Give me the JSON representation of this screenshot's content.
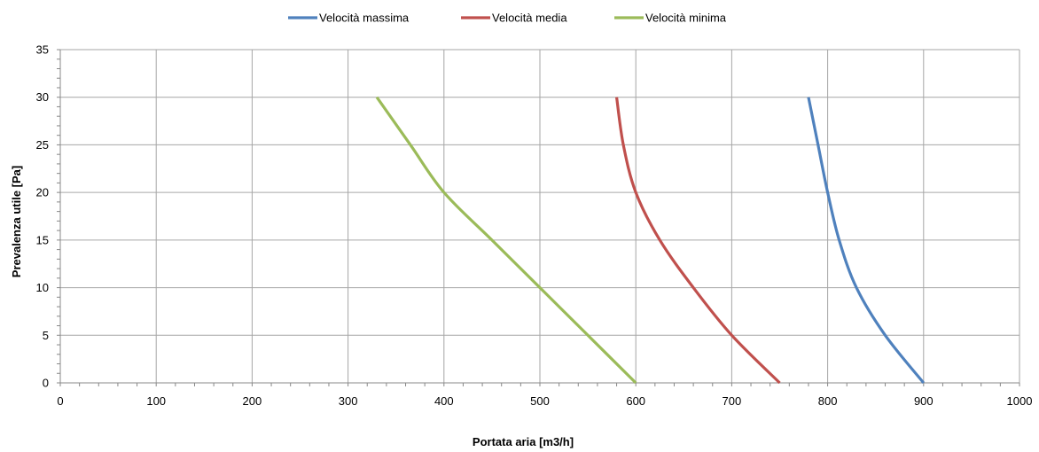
{
  "chart_data": {
    "type": "line",
    "xlabel": "Portata aria  [m3/h]",
    "ylabel": "Prevalenza utile [Pa]",
    "xlim": [
      0,
      1000
    ],
    "ylim": [
      0,
      35
    ],
    "x_ticks": [
      0,
      100,
      200,
      300,
      400,
      500,
      600,
      700,
      800,
      900,
      1000
    ],
    "y_ticks": [
      0,
      5,
      10,
      15,
      20,
      25,
      30,
      35
    ],
    "grid": true,
    "legend_position": "top-center",
    "series": [
      {
        "name": "Velocità massima",
        "color": "#4f81bd",
        "points": [
          [
            780,
            30
          ],
          [
            790,
            25
          ],
          [
            800,
            20
          ],
          [
            812,
            15
          ],
          [
            830,
            10
          ],
          [
            860,
            5
          ],
          [
            900,
            0
          ]
        ]
      },
      {
        "name": "Velocità media",
        "color": "#c0504d",
        "points": [
          [
            580,
            30
          ],
          [
            587,
            25
          ],
          [
            600,
            20
          ],
          [
            625,
            15
          ],
          [
            660,
            10
          ],
          [
            700,
            5
          ],
          [
            750,
            0
          ]
        ]
      },
      {
        "name": "Velocità minima",
        "color": "#9bbb59",
        "points": [
          [
            330,
            30
          ],
          [
            365,
            25
          ],
          [
            400,
            20
          ],
          [
            450,
            15
          ],
          [
            500,
            10
          ],
          [
            550,
            5
          ],
          [
            600,
            0
          ]
        ]
      }
    ]
  }
}
